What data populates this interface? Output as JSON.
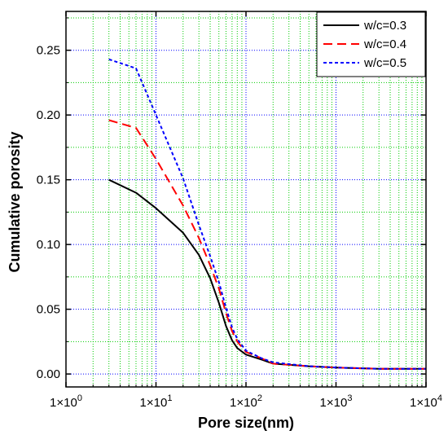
{
  "chart_data": {
    "type": "line",
    "xlabel": "Pore size(nm)",
    "ylabel": "Cumulative porosity",
    "xscale": "log",
    "xlim": [
      1,
      10000
    ],
    "ylim": [
      -0.01,
      0.28
    ],
    "x_ticks": [
      1,
      10,
      100,
      1000,
      10000
    ],
    "x_tick_labels": [
      {
        "base": "1×10",
        "exp": "0"
      },
      {
        "base": "1×10",
        "exp": "1"
      },
      {
        "base": "1×10",
        "exp": "2"
      },
      {
        "base": "1×10",
        "exp": "3"
      },
      {
        "base": "1×10",
        "exp": "4"
      }
    ],
    "y_ticks": [
      0.0,
      0.05,
      0.1,
      0.15,
      0.2,
      0.25
    ],
    "y_tick_labels": [
      "0.00",
      "0.05",
      "0.10",
      "0.15",
      "0.20",
      "0.25"
    ],
    "grid": true,
    "grid_colors": {
      "major": "#0000ff",
      "minor": "#00cc00"
    },
    "legend_position": "top-right",
    "series": [
      {
        "name": "w/c=0.3",
        "color": "#000000",
        "dash": "solid",
        "points": [
          [
            3,
            0.15
          ],
          [
            6,
            0.14
          ],
          [
            10,
            0.128
          ],
          [
            20,
            0.109
          ],
          [
            30,
            0.092
          ],
          [
            40,
            0.074
          ],
          [
            50,
            0.055
          ],
          [
            60,
            0.037
          ],
          [
            70,
            0.026
          ],
          [
            80,
            0.02
          ],
          [
            100,
            0.015
          ],
          [
            150,
            0.011
          ],
          [
            200,
            0.008
          ],
          [
            500,
            0.006
          ],
          [
            1000,
            0.005
          ],
          [
            3000,
            0.004
          ],
          [
            10000,
            0.004
          ]
        ]
      },
      {
        "name": "w/c=0.4",
        "color": "#ff0000",
        "dash": "dashed",
        "points": [
          [
            3,
            0.196
          ],
          [
            6,
            0.19
          ],
          [
            10,
            0.166
          ],
          [
            20,
            0.13
          ],
          [
            30,
            0.105
          ],
          [
            40,
            0.084
          ],
          [
            50,
            0.066
          ],
          [
            60,
            0.047
          ],
          [
            70,
            0.033
          ],
          [
            80,
            0.025
          ],
          [
            100,
            0.017
          ],
          [
            150,
            0.012
          ],
          [
            200,
            0.008
          ],
          [
            500,
            0.006
          ],
          [
            1000,
            0.005
          ],
          [
            3000,
            0.004
          ],
          [
            10000,
            0.004
          ]
        ]
      },
      {
        "name": "w/c=0.5",
        "color": "#0000ff",
        "dash": "dotted",
        "points": [
          [
            3,
            0.243
          ],
          [
            6,
            0.236
          ],
          [
            10,
            0.2
          ],
          [
            20,
            0.151
          ],
          [
            30,
            0.115
          ],
          [
            40,
            0.091
          ],
          [
            50,
            0.071
          ],
          [
            60,
            0.051
          ],
          [
            70,
            0.036
          ],
          [
            80,
            0.027
          ],
          [
            100,
            0.018
          ],
          [
            150,
            0.012
          ],
          [
            200,
            0.009
          ],
          [
            500,
            0.006
          ],
          [
            1000,
            0.005
          ],
          [
            3000,
            0.004
          ],
          [
            10000,
            0.004
          ]
        ]
      }
    ]
  }
}
